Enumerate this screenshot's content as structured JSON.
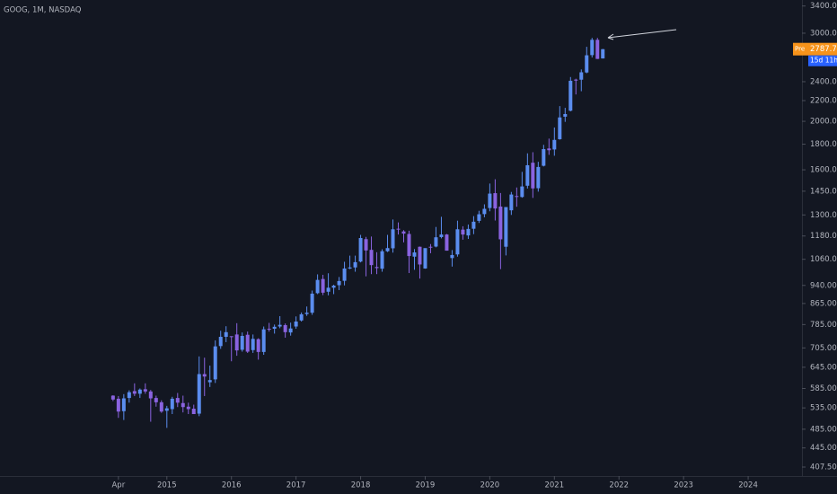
{
  "chart_data": {
    "type": "candlestick",
    "title": "GOOG, 1M, NASDAQ",
    "log_scale": true,
    "up_color": "#5b8def",
    "down_color": "#8a63e0",
    "xlim": [
      "2012-06",
      "2024-11"
    ],
    "ylim": [
      391,
      3495
    ],
    "x": [
      "2014-03",
      "2014-04",
      "2014-05",
      "2014-06",
      "2014-07",
      "2014-08",
      "2014-09",
      "2014-10",
      "2014-11",
      "2014-12",
      "2015-01",
      "2015-02",
      "2015-03",
      "2015-04",
      "2015-05",
      "2015-06",
      "2015-07",
      "2015-08",
      "2015-09",
      "2015-10",
      "2015-11",
      "2015-12",
      "2016-01",
      "2016-02",
      "2016-03",
      "2016-04",
      "2016-05",
      "2016-06",
      "2016-07",
      "2016-08",
      "2016-09",
      "2016-10",
      "2016-11",
      "2016-12",
      "2017-01",
      "2017-02",
      "2017-03",
      "2017-04",
      "2017-05",
      "2017-06",
      "2017-07",
      "2017-08",
      "2017-09",
      "2017-10",
      "2017-11",
      "2017-12",
      "2018-01",
      "2018-02",
      "2018-03",
      "2018-04",
      "2018-05",
      "2018-06",
      "2018-07",
      "2018-08",
      "2018-09",
      "2018-10",
      "2018-11",
      "2018-12",
      "2019-01",
      "2019-02",
      "2019-03",
      "2019-04",
      "2019-05",
      "2019-06",
      "2019-07",
      "2019-08",
      "2019-09",
      "2019-10",
      "2019-11",
      "2019-12",
      "2020-01",
      "2020-02",
      "2020-03",
      "2020-04",
      "2020-05",
      "2020-06",
      "2020-07",
      "2020-08",
      "2020-09",
      "2020-10",
      "2020-11",
      "2020-12",
      "2021-01",
      "2021-02",
      "2021-03",
      "2021-04",
      "2021-05",
      "2021-06",
      "2021-07",
      "2021-08",
      "2021-09",
      "2021-10"
    ],
    "open": [
      566,
      558,
      527,
      560,
      578,
      571,
      583,
      577,
      560,
      549,
      528,
      532,
      560,
      547,
      538,
      533,
      521,
      625,
      602,
      610,
      711,
      742,
      744,
      750,
      699,
      749,
      698,
      734,
      692,
      770,
      770,
      778,
      783,
      757,
      778,
      800,
      824,
      829,
      907,
      968,
      913,
      930,
      941,
      960,
      1016,
      1021,
      1049,
      1163,
      1107,
      1023,
      1015,
      1100,
      1115,
      1220,
      1205,
      1191,
      1073,
      1123,
      1016,
      1123,
      1124,
      1174,
      1188,
      1066,
      1084,
      1215,
      1183,
      1220,
      1265,
      1305,
      1342,
      1437,
      1351,
      1123,
      1328,
      1418,
      1412,
      1487,
      1653,
      1470,
      1630,
      1765,
      1757,
      1842,
      2043,
      2100,
      2423,
      2422,
      2504,
      2712,
      2910,
      2671
    ],
    "high": [
      567,
      565,
      570,
      580,
      599,
      585,
      599,
      581,
      566,
      554,
      540,
      563,
      573,
      566,
      548,
      543,
      678,
      674,
      650,
      730,
      763,
      779,
      744,
      790,
      757,
      760,
      750,
      737,
      778,
      791,
      785,
      816,
      789,
      792,
      815,
      830,
      853,
      918,
      989,
      987,
      994,
      943,
      977,
      1048,
      1078,
      1078,
      1186,
      1175,
      1177,
      1095,
      1110,
      1186,
      1273,
      1256,
      1212,
      1209,
      1111,
      1124,
      1109,
      1137,
      1230,
      1289,
      1191,
      1106,
      1266,
      1234,
      1244,
      1293,
      1325,
      1365,
      1502,
      1532,
      1438,
      1347,
      1445,
      1475,
      1585,
      1726,
      1735,
      1660,
      1795,
      1847,
      1944,
      2145,
      2128,
      2452,
      2433,
      2539,
      2818,
      2936,
      2936,
      2790
    ],
    "low": [
      552,
      511,
      506,
      548,
      565,
      560,
      571,
      502,
      538,
      523,
      488,
      520,
      537,
      524,
      520,
      520,
      515,
      565,
      589,
      600,
      702,
      724,
      663,
      680,
      693,
      689,
      689,
      668,
      683,
      760,
      753,
      772,
      739,
      746,
      770,
      796,
      817,
      821,
      903,
      899,
      898,
      903,
      920,
      940,
      1013,
      1001,
      1045,
      980,
      990,
      990,
      1001,
      1096,
      1093,
      1188,
      1146,
      995,
      1010,
      970,
      1015,
      1090,
      1120,
      1167,
      1103,
      1025,
      1073,
      1160,
      1164,
      1190,
      1253,
      1286,
      1322,
      1267,
      1013,
      1079,
      1300,
      1350,
      1407,
      1468,
      1406,
      1447,
      1625,
      1714,
      1707,
      1838,
      1995,
      2094,
      2263,
      2297,
      2495,
      2683,
      2664,
      2670
    ],
    "close": [
      556,
      526,
      559,
      575,
      571,
      582,
      577,
      559,
      549,
      526,
      534,
      558,
      548,
      537,
      532,
      520,
      625,
      618,
      608,
      710,
      742,
      758,
      742,
      697,
      745,
      693,
      735,
      692,
      768,
      767,
      777,
      784,
      758,
      771,
      796,
      823,
      829,
      905,
      964,
      909,
      930,
      939,
      959,
      1016,
      1021,
      1046,
      1169,
      1104,
      1032,
      1018,
      1100,
      1116,
      1217,
      1218,
      1193,
      1076,
      1094,
      1035,
      1116,
      1119,
      1173,
      1188,
      1103,
      1081,
      1217,
      1188,
      1219,
      1260,
      1304,
      1337,
      1434,
      1339,
      1162,
      1348,
      1428,
      1413,
      1482,
      1634,
      1469,
      1621,
      1760,
      1751,
      1836,
      2036,
      2068,
      2410,
      2412,
      2506,
      2710,
      2910,
      2665,
      2787
    ],
    "yticks": [
      {
        "value": 3400,
        "label": "3400.00"
      },
      {
        "value": 3000,
        "label": "3000.00"
      },
      {
        "value": 2400,
        "label": "2400.00"
      },
      {
        "value": 2200,
        "label": "2200.00"
      },
      {
        "value": 2000,
        "label": "2000.00"
      },
      {
        "value": 1800,
        "label": "1800.00"
      },
      {
        "value": 1600,
        "label": "1600.00"
      },
      {
        "value": 1450,
        "label": "1450.00"
      },
      {
        "value": 1300,
        "label": "1300.00"
      },
      {
        "value": 1180,
        "label": "1180.00"
      },
      {
        "value": 1060,
        "label": "1060.00"
      },
      {
        "value": 940,
        "label": "940.00"
      },
      {
        "value": 865,
        "label": "865.00"
      },
      {
        "value": 785,
        "label": "785.00"
      },
      {
        "value": 705,
        "label": "705.00"
      },
      {
        "value": 645,
        "label": "645.00"
      },
      {
        "value": 585,
        "label": "585.00"
      },
      {
        "value": 535,
        "label": "535.00"
      },
      {
        "value": 485,
        "label": "485.00"
      },
      {
        "value": 445,
        "label": "445.00"
      },
      {
        "value": 407.5,
        "label": "407.50"
      }
    ],
    "xticks": [
      {
        "value": "2014-04",
        "label": "Apr"
      },
      {
        "value": "2015-01",
        "label": "2015"
      },
      {
        "value": "2016-01",
        "label": "2016"
      },
      {
        "value": "2017-01",
        "label": "2017"
      },
      {
        "value": "2018-01",
        "label": "2018"
      },
      {
        "value": "2019-01",
        "label": "2019"
      },
      {
        "value": "2020-01",
        "label": "2020"
      },
      {
        "value": "2021-01",
        "label": "2021"
      },
      {
        "value": "2022-01",
        "label": "2022"
      },
      {
        "value": "2023-01",
        "label": "2023"
      },
      {
        "value": "2024-01",
        "label": "2024"
      }
    ],
    "price_tag": {
      "prefix": "Pre",
      "value": 2787.75,
      "countdown": "15d 11h"
    }
  }
}
